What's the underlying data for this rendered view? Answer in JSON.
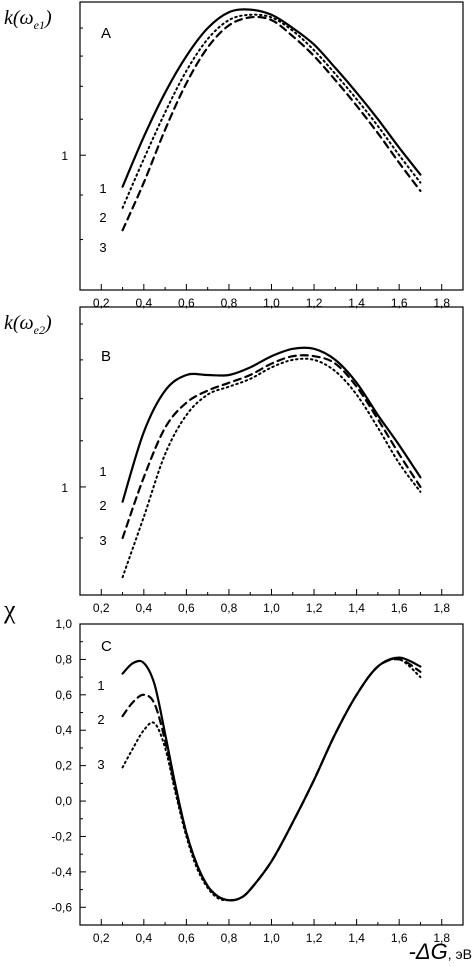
{
  "chart_data": [
    {
      "type": "line",
      "panel_label": "A",
      "ylabel": {
        "main": "k(ω",
        "sub": "e1",
        "close": ")"
      },
      "yscale": "log",
      "ylim": [
        0.7,
        1.5
      ],
      "yticks": [
        {
          "value": 1,
          "label": "1"
        }
      ],
      "xlim": [
        0.1,
        1.9
      ],
      "xticks": [
        "0,2",
        "0,4",
        "0,6",
        "0,8",
        "1,0",
        "1,2",
        "1,4",
        "1,6",
        "1,8"
      ],
      "series": [
        {
          "label": "1",
          "style": "solid",
          "x": [
            0.3,
            0.4,
            0.5,
            0.6,
            0.7,
            0.8,
            0.9,
            1.0,
            1.1,
            1.2,
            1.3,
            1.4,
            1.5,
            1.6,
            1.7
          ],
          "y": [
            0.92,
            1.05,
            1.18,
            1.3,
            1.4,
            1.46,
            1.47,
            1.45,
            1.4,
            1.34,
            1.26,
            1.18,
            1.1,
            1.02,
            0.95
          ]
        },
        {
          "label": "2",
          "style": "dotted",
          "x": [
            0.3,
            0.4,
            0.5,
            0.6,
            0.7,
            0.8,
            0.9,
            1.0,
            1.1,
            1.2,
            1.3,
            1.4,
            1.5,
            1.6,
            1.7
          ],
          "y": [
            0.87,
            0.99,
            1.12,
            1.25,
            1.36,
            1.43,
            1.45,
            1.44,
            1.39,
            1.32,
            1.24,
            1.16,
            1.08,
            1.0,
            0.93
          ]
        },
        {
          "label": "3",
          "style": "dashed",
          "x": [
            0.3,
            0.4,
            0.5,
            0.6,
            0.7,
            0.8,
            0.9,
            1.0,
            1.1,
            1.2,
            1.3,
            1.4,
            1.5,
            1.6,
            1.7
          ],
          "y": [
            0.82,
            0.93,
            1.07,
            1.21,
            1.33,
            1.41,
            1.44,
            1.43,
            1.37,
            1.3,
            1.22,
            1.14,
            1.06,
            0.98,
            0.91
          ]
        }
      ]
    },
    {
      "type": "line",
      "panel_label": "B",
      "ylabel": {
        "main": "k(ω",
        "sub": "e2",
        "close": ")"
      },
      "yscale": "log",
      "ylim": [
        0.8,
        1.45
      ],
      "yticks": [
        {
          "value": 1,
          "label": "1"
        }
      ],
      "xlim": [
        0.1,
        1.9
      ],
      "xticks": [
        "0,2",
        "0,4",
        "0,6",
        "0,8",
        "1,0",
        "1,2",
        "1,4",
        "1,6",
        "1,8"
      ],
      "series": [
        {
          "label": "1",
          "style": "solid",
          "x": [
            0.3,
            0.4,
            0.5,
            0.6,
            0.7,
            0.8,
            0.9,
            1.0,
            1.1,
            1.2,
            1.3,
            1.4,
            1.5,
            1.6,
            1.7
          ],
          "y": [
            0.97,
            1.12,
            1.22,
            1.26,
            1.26,
            1.26,
            1.28,
            1.31,
            1.33,
            1.33,
            1.3,
            1.24,
            1.16,
            1.09,
            1.02
          ]
        },
        {
          "label": "2",
          "style": "dashed",
          "x": [
            0.3,
            0.4,
            0.5,
            0.6,
            0.7,
            0.8,
            0.9,
            1.0,
            1.1,
            1.2,
            1.3,
            1.4,
            1.5,
            1.6,
            1.7
          ],
          "y": [
            0.9,
            1.02,
            1.13,
            1.19,
            1.22,
            1.24,
            1.26,
            1.29,
            1.31,
            1.31,
            1.29,
            1.23,
            1.15,
            1.07,
            1.0
          ]
        },
        {
          "label": "3",
          "style": "dotted",
          "x": [
            0.3,
            0.4,
            0.5,
            0.6,
            0.7,
            0.8,
            0.9,
            1.0,
            1.1,
            1.2,
            1.3,
            1.4,
            1.5,
            1.6,
            1.7
          ],
          "y": [
            0.83,
            0.94,
            1.07,
            1.16,
            1.21,
            1.23,
            1.25,
            1.28,
            1.3,
            1.3,
            1.27,
            1.21,
            1.13,
            1.05,
            0.99
          ]
        }
      ]
    },
    {
      "type": "line",
      "panel_label": "C",
      "ylabel": {
        "main": "χ"
      },
      "xlabel": {
        "main": "-ΔG",
        "unit": ", эВ"
      },
      "ylim": [
        -0.7,
        1.0
      ],
      "yticks": [
        {
          "value": 1.0,
          "label": "1,0"
        },
        {
          "value": 0.8,
          "label": "0,8"
        },
        {
          "value": 0.6,
          "label": "0,6"
        },
        {
          "value": 0.4,
          "label": "0,4"
        },
        {
          "value": 0.2,
          "label": "0,2"
        },
        {
          "value": 0.0,
          "label": "0,0"
        },
        {
          "value": -0.2,
          "label": "-0,2"
        },
        {
          "value": -0.4,
          "label": "-0,4"
        },
        {
          "value": -0.6,
          "label": "-0,6"
        }
      ],
      "xlim": [
        0.1,
        1.9
      ],
      "xticks": [
        "0,2",
        "0,4",
        "0,6",
        "0,8",
        "1,0",
        "1,2",
        "1,4",
        "1,6",
        "1,8"
      ],
      "series": [
        {
          "label": "1",
          "style": "solid",
          "x": [
            0.3,
            0.35,
            0.4,
            0.45,
            0.5,
            0.55,
            0.6,
            0.65,
            0.7,
            0.75,
            0.8,
            0.85,
            0.9,
            1.0,
            1.1,
            1.2,
            1.3,
            1.4,
            1.5,
            1.6,
            1.7
          ],
          "y": [
            0.72,
            0.78,
            0.78,
            0.66,
            0.38,
            0.08,
            -0.18,
            -0.36,
            -0.48,
            -0.54,
            -0.56,
            -0.55,
            -0.5,
            -0.34,
            -0.12,
            0.12,
            0.38,
            0.6,
            0.76,
            0.81,
            0.76
          ]
        },
        {
          "label": "2",
          "style": "dashed",
          "x": [
            0.3,
            0.35,
            0.4,
            0.45,
            0.5,
            0.55,
            0.6,
            0.65,
            0.7,
            0.75,
            0.8,
            0.85,
            0.9,
            1.0,
            1.1,
            1.2,
            1.3,
            1.4,
            1.5,
            1.6,
            1.7
          ],
          "y": [
            0.48,
            0.56,
            0.6,
            0.55,
            0.34,
            0.06,
            -0.18,
            -0.36,
            -0.48,
            -0.54,
            -0.56,
            -0.55,
            -0.5,
            -0.34,
            -0.12,
            0.12,
            0.38,
            0.6,
            0.76,
            0.8,
            0.73
          ]
        },
        {
          "label": "3",
          "style": "dotted",
          "x": [
            0.3,
            0.35,
            0.4,
            0.45,
            0.5,
            0.55,
            0.6,
            0.65,
            0.7,
            0.75,
            0.8,
            0.85,
            0.9,
            1.0,
            1.1,
            1.2,
            1.3,
            1.4,
            1.5,
            1.6,
            1.7
          ],
          "y": [
            0.19,
            0.3,
            0.4,
            0.44,
            0.3,
            0.04,
            -0.2,
            -0.38,
            -0.49,
            -0.55,
            -0.56,
            -0.55,
            -0.5,
            -0.34,
            -0.12,
            0.12,
            0.38,
            0.6,
            0.76,
            0.8,
            0.7
          ]
        }
      ]
    }
  ]
}
